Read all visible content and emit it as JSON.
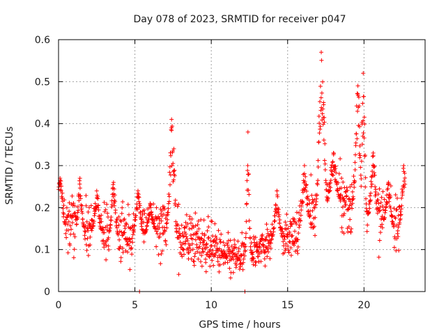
{
  "chart_data": {
    "type": "scatter",
    "title": "Day 078 of 2023, SRMTID for receiver p047",
    "xlabel": "GPS time / hours",
    "ylabel": "SRMTID / TECUs",
    "xlim": [
      0,
      24
    ],
    "ylim": [
      0,
      0.6
    ],
    "xticks": [
      0,
      5,
      10,
      15,
      20
    ],
    "xtick_labels": [
      "0",
      "5",
      "10",
      "15",
      "20"
    ],
    "yticks": [
      0,
      0.1,
      0.2,
      0.3,
      0.4,
      0.5,
      0.6
    ],
    "ytick_labels": [
      "0",
      "0.1",
      "0.2",
      "0.3",
      "0.4",
      "0.5",
      "0.6"
    ],
    "grid": true,
    "marker": "+",
    "series": [
      {
        "name": "SRMTID",
        "color": "#ff0000",
        "points_per_hour": 60,
        "trend": {
          "x": [
            0,
            0.3,
            1,
            2,
            3,
            4,
            5,
            6,
            7,
            8,
            9,
            10,
            11,
            12,
            13,
            14,
            15,
            16,
            17,
            18,
            19,
            20,
            21,
            22,
            22.7
          ],
          "y": [
            0.22,
            0.16,
            0.14,
            0.15,
            0.14,
            0.13,
            0.13,
            0.14,
            0.16,
            0.13,
            0.12,
            0.11,
            0.08,
            0.08,
            0.1,
            0.12,
            0.13,
            0.15,
            0.2,
            0.21,
            0.21,
            0.18,
            0.17,
            0.15,
            0.16
          ]
        },
        "spread": {
          "x": [
            0,
            5,
            7,
            10,
            12,
            14,
            16,
            17,
            20,
            22.7
          ],
          "y": [
            0.06,
            0.06,
            0.07,
            0.05,
            0.04,
            0.04,
            0.05,
            0.08,
            0.07,
            0.06
          ]
        },
        "bursts": [
          {
            "x": 0.1,
            "width": 0.3,
            "peak": 0.27
          },
          {
            "x": 1.4,
            "width": 0.25,
            "peak": 0.27
          },
          {
            "x": 2.5,
            "width": 0.25,
            "peak": 0.24
          },
          {
            "x": 3.6,
            "width": 0.25,
            "peak": 0.26
          },
          {
            "x": 5.2,
            "width": 0.3,
            "peak": 0.24
          },
          {
            "x": 6.0,
            "width": 0.3,
            "peak": 0.21
          },
          {
            "x": 7.4,
            "width": 0.25,
            "peak": 0.41
          },
          {
            "x": 7.55,
            "width": 0.15,
            "peak": 0.34
          },
          {
            "x": 12.4,
            "width": 0.15,
            "peak": 0.38
          },
          {
            "x": 14.3,
            "width": 0.3,
            "peak": 0.24
          },
          {
            "x": 16.1,
            "width": 0.3,
            "peak": 0.3
          },
          {
            "x": 17.2,
            "width": 0.3,
            "peak": 0.57
          },
          {
            "x": 17.35,
            "width": 0.2,
            "peak": 0.45
          },
          {
            "x": 18.0,
            "width": 0.4,
            "peak": 0.33
          },
          {
            "x": 19.6,
            "width": 0.3,
            "peak": 0.49
          },
          {
            "x": 19.95,
            "width": 0.2,
            "peak": 0.52
          },
          {
            "x": 20.6,
            "width": 0.3,
            "peak": 0.33
          },
          {
            "x": 21.6,
            "width": 0.3,
            "peak": 0.26
          },
          {
            "x": 22.6,
            "width": 0.25,
            "peak": 0.3
          }
        ],
        "zero_markers_x": [
          5.3,
          12.2
        ],
        "x_range": [
          0,
          22.7
        ]
      }
    ]
  }
}
